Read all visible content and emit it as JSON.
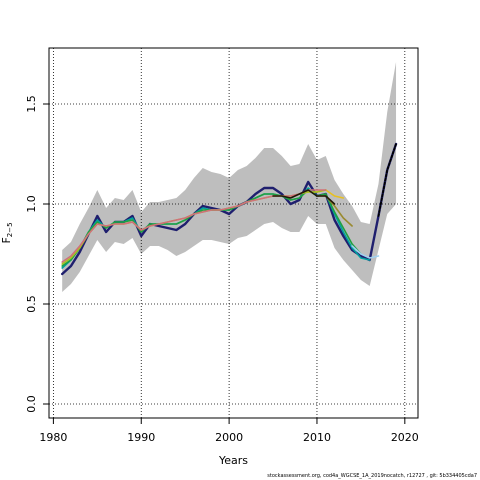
{
  "chart_data": {
    "type": "line",
    "title": "",
    "xlabel": "Years",
    "ylabel_main": "F",
    "ylabel_sub": "2−5",
    "xlim": [
      1979.5,
      2021.5
    ],
    "ylim": [
      -0.07,
      1.78
    ],
    "x_ticks": [
      1980,
      1990,
      2000,
      2010,
      2020
    ],
    "y_ticks": [
      0.0,
      0.5,
      1.0,
      1.5
    ],
    "y_tick_labels": [
      "0.0",
      "0.5",
      "1.0",
      "1.5"
    ],
    "grid": true,
    "confidence_band": {
      "color": "#bebebe",
      "x": [
        1981,
        1982,
        1983,
        1984,
        1985,
        1986,
        1987,
        1988,
        1989,
        1990,
        1991,
        1992,
        1993,
        1994,
        1995,
        1996,
        1997,
        1998,
        1999,
        2000,
        2001,
        2002,
        2003,
        2004,
        2005,
        2006,
        2007,
        2008,
        2009,
        2010,
        2011,
        2012,
        2013,
        2014,
        2015,
        2016,
        2017,
        2018,
        2019
      ],
      "upper": [
        0.77,
        0.81,
        0.9,
        0.98,
        1.07,
        0.98,
        1.03,
        1.02,
        1.07,
        0.96,
        1.01,
        1.01,
        1.02,
        1.03,
        1.07,
        1.13,
        1.18,
        1.16,
        1.15,
        1.13,
        1.17,
        1.19,
        1.23,
        1.28,
        1.28,
        1.24,
        1.19,
        1.2,
        1.3,
        1.22,
        1.24,
        1.12,
        1.05,
        0.99,
        0.91,
        0.9,
        1.1,
        1.46,
        1.71
      ],
      "lower": [
        0.56,
        0.6,
        0.66,
        0.74,
        0.82,
        0.76,
        0.81,
        0.8,
        0.83,
        0.75,
        0.79,
        0.79,
        0.77,
        0.74,
        0.76,
        0.79,
        0.82,
        0.82,
        0.81,
        0.8,
        0.83,
        0.84,
        0.87,
        0.9,
        0.91,
        0.88,
        0.86,
        0.86,
        0.94,
        0.9,
        0.9,
        0.78,
        0.72,
        0.67,
        0.62,
        0.59,
        0.77,
        0.95,
        1.0
      ]
    },
    "series": [
      {
        "color": "#1f1f6e",
        "width": 2.4,
        "x": [
          1981,
          1982,
          1983,
          1984,
          1985,
          1986,
          1987,
          1988,
          1989,
          1990,
          1991,
          1992,
          1993,
          1994,
          1995,
          1996,
          1997,
          1998,
          1999,
          2000,
          2001,
          2002,
          2003,
          2004,
          2005,
          2006,
          2007,
          2008,
          2009,
          2010,
          2011,
          2012,
          2013,
          2014,
          2015,
          2016,
          2017,
          2018,
          2019
        ],
        "values": [
          0.65,
          0.69,
          0.76,
          0.85,
          0.94,
          0.86,
          0.91,
          0.91,
          0.94,
          0.84,
          0.9,
          0.89,
          0.88,
          0.87,
          0.9,
          0.95,
          0.99,
          0.98,
          0.97,
          0.95,
          0.99,
          1.01,
          1.05,
          1.08,
          1.08,
          1.05,
          1.0,
          1.02,
          1.11,
          1.04,
          1.05,
          0.92,
          0.84,
          0.77,
          0.74,
          0.72,
          0.94,
          1.17,
          1.3
        ]
      },
      {
        "color": "#00a0a0",
        "width": 1.6,
        "x": [
          1981,
          1982,
          1983,
          1984,
          1985,
          1986,
          1987,
          1988,
          1989,
          1990,
          1991,
          1992,
          1993,
          1994,
          1995,
          1996,
          1997,
          1998,
          1999,
          2000,
          2001,
          2002,
          2003,
          2004,
          2005,
          2006,
          2007,
          2008,
          2009,
          2010,
          2011,
          2012,
          2013,
          2014,
          2015,
          2016
        ],
        "values": [
          0.68,
          0.72,
          0.78,
          0.86,
          0.92,
          0.88,
          0.91,
          0.91,
          0.93,
          0.86,
          0.9,
          0.9,
          0.9,
          0.9,
          0.92,
          0.95,
          0.98,
          0.97,
          0.97,
          0.97,
          0.99,
          1.01,
          1.03,
          1.05,
          1.05,
          1.04,
          1.02,
          1.03,
          1.08,
          1.04,
          1.05,
          0.95,
          0.86,
          0.78,
          0.73,
          0.72
        ]
      },
      {
        "color": "#20a040",
        "width": 1.6,
        "x": [
          1981,
          1982,
          1983,
          1984,
          1985,
          1986,
          1987,
          1988,
          1989,
          1990,
          1991,
          1992,
          1993,
          1994,
          1995,
          1996,
          1997,
          1998,
          1999,
          2000,
          2001,
          2002,
          2003,
          2004,
          2005,
          2006,
          2007,
          2008,
          2009,
          2010,
          2011,
          2012,
          2013,
          2014,
          2015
        ],
        "values": [
          0.69,
          0.72,
          0.78,
          0.86,
          0.91,
          0.88,
          0.91,
          0.91,
          0.92,
          0.86,
          0.9,
          0.9,
          0.9,
          0.9,
          0.92,
          0.95,
          0.97,
          0.97,
          0.97,
          0.97,
          0.99,
          1.01,
          1.03,
          1.05,
          1.05,
          1.04,
          1.02,
          1.03,
          1.07,
          1.04,
          1.05,
          0.96,
          0.88,
          0.8,
          0.75
        ]
      },
      {
        "color": "#a0d0f0",
        "width": 1.6,
        "x": [
          2014,
          2015,
          2016,
          2017
        ],
        "values": [
          0.79,
          0.75,
          0.73,
          0.74
        ]
      },
      {
        "color": "#9a8a30",
        "width": 1.6,
        "x": [
          2010,
          2011,
          2012,
          2013,
          2014
        ],
        "values": [
          1.04,
          1.04,
          0.99,
          0.93,
          0.89
        ]
      },
      {
        "color": "#e8c020",
        "width": 1.6,
        "x": [
          2009,
          2010,
          2011,
          2012,
          2013
        ],
        "values": [
          1.06,
          1.06,
          1.07,
          1.04,
          1.03
        ]
      },
      {
        "color": "#a8c020",
        "width": 1.6,
        "x": [
          1981,
          1982,
          1983,
          1984,
          1985,
          1986,
          1987,
          1988,
          1989,
          1990,
          1991,
          1992,
          1993,
          1994,
          1995,
          1996,
          1997,
          1998,
          1999,
          2000,
          2001,
          2002,
          2003,
          2004,
          2005,
          2006,
          2007,
          2008,
          2009,
          2010,
          2011
        ],
        "values": [
          0.7,
          0.73,
          0.78,
          0.85,
          0.9,
          0.89,
          0.9,
          0.9,
          0.91,
          0.87,
          0.89,
          0.9,
          0.91,
          0.92,
          0.93,
          0.95,
          0.96,
          0.97,
          0.97,
          0.98,
          0.99,
          1.01,
          1.02,
          1.03,
          1.04,
          1.04,
          1.04,
          1.05,
          1.06,
          1.06,
          1.07
        ]
      },
      {
        "color": "#d0707a",
        "width": 1.6,
        "x": [
          1981,
          1982,
          1983,
          1984,
          1985,
          1986,
          1987,
          1988,
          1989,
          1990,
          1991,
          1992,
          1993,
          1994,
          1995,
          1996,
          1997,
          1998,
          1999,
          2000,
          2001,
          2002,
          2003,
          2004,
          2005,
          2006,
          2007,
          2008,
          2009,
          2010,
          2011
        ],
        "values": [
          0.71,
          0.74,
          0.79,
          0.85,
          0.9,
          0.89,
          0.9,
          0.9,
          0.91,
          0.87,
          0.89,
          0.9,
          0.91,
          0.92,
          0.93,
          0.95,
          0.96,
          0.97,
          0.97,
          0.98,
          0.99,
          1.01,
          1.02,
          1.03,
          1.04,
          1.04,
          1.04,
          1.05,
          1.07,
          1.07,
          1.07
        ]
      },
      {
        "color": "#201808",
        "width": 1.6,
        "x": [
          2005,
          2006,
          2007,
          2008,
          2009,
          2010,
          2011,
          2012
        ],
        "values": [
          1.04,
          1.04,
          1.03,
          1.05,
          1.07,
          1.04,
          1.04,
          1.0
        ]
      },
      {
        "color": "#000000",
        "width": 1.8,
        "dashed": true,
        "x": [
          2017,
          2018,
          2019
        ],
        "values": [
          0.94,
          1.17,
          1.3
        ]
      }
    ]
  },
  "footer_note": "stockassessment.org, cod4a_WGCSE_1A_2019nocatch, r12727 , git: 5b334405cda7"
}
